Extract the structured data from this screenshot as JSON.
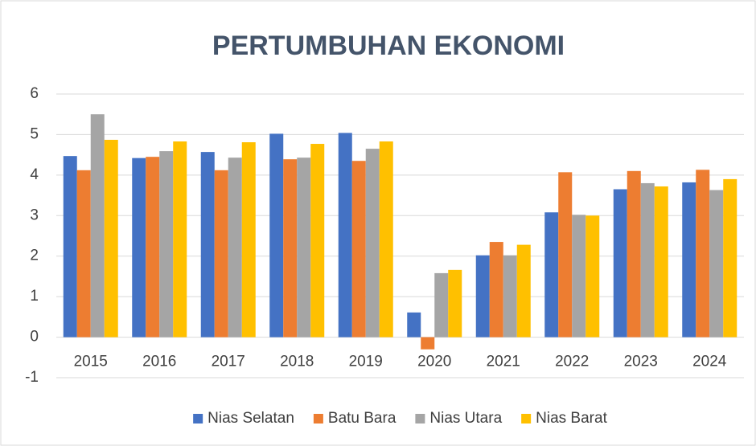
{
  "chart_data": {
    "type": "bar",
    "title": "PERTUMBUHAN EKONOMI",
    "categories": [
      "2015",
      "2016",
      "2017",
      "2018",
      "2019",
      "2020",
      "2021",
      "2022",
      "2023",
      "2024"
    ],
    "series": [
      {
        "name": "Nias Selatan",
        "color": "#4472c4",
        "values": [
          4.47,
          4.42,
          4.57,
          5.02,
          5.04,
          0.61,
          2.02,
          3.08,
          3.65,
          3.82
        ]
      },
      {
        "name": "Batu Bara",
        "color": "#ed7d31",
        "values": [
          4.12,
          4.45,
          4.12,
          4.39,
          4.35,
          -0.3,
          2.35,
          4.07,
          4.1,
          4.13
        ]
      },
      {
        "name": "Nias Utara",
        "color": "#a5a5a5",
        "values": [
          5.5,
          4.59,
          4.43,
          4.43,
          4.65,
          1.58,
          2.02,
          3.02,
          3.8,
          3.63
        ]
      },
      {
        "name": "Nias Barat",
        "color": "#ffc000",
        "values": [
          4.87,
          4.83,
          4.81,
          4.77,
          4.83,
          1.66,
          2.28,
          3.0,
          3.72,
          3.9
        ]
      }
    ],
    "ylim": [
      -1,
      6
    ],
    "yticks": [
      -1,
      0,
      1,
      2,
      3,
      4,
      5,
      6
    ],
    "grid": true,
    "legend": "bottom"
  }
}
